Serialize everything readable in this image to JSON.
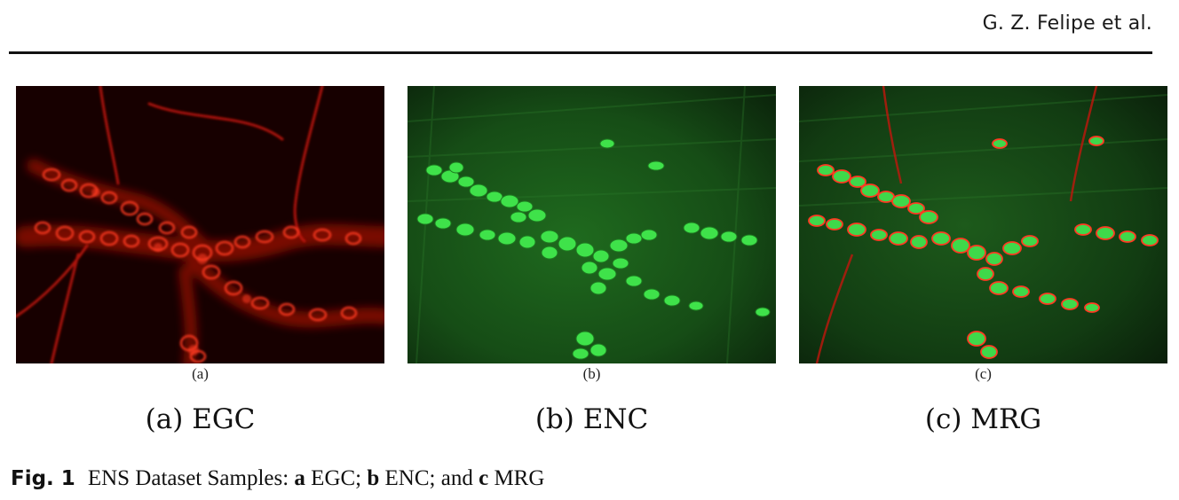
{
  "header": {
    "authors": "G. Z. Felipe et al."
  },
  "panels": [
    {
      "sublabel": "(a)",
      "caption": "(a) EGC"
    },
    {
      "sublabel": "(b)",
      "caption": "(b) ENC"
    },
    {
      "sublabel": "(c)",
      "caption": "(c) MRG"
    }
  ],
  "figure": {
    "number": "Fig. 1",
    "text_lead": "ENS Dataset Samples: ",
    "parts": [
      {
        "key": "a",
        "text": " EGC; "
      },
      {
        "key": "b",
        "text": " ENC; and "
      },
      {
        "key": "c",
        "text": " MRG"
      }
    ]
  },
  "colors": {
    "egc_stain": "#ff2a1a",
    "enc_stain": "#39e64a"
  }
}
